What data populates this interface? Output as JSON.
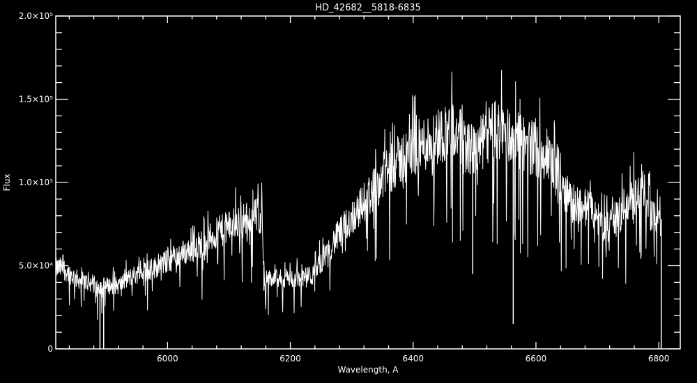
{
  "chart_data": {
    "type": "line",
    "title": "HD_42682__5818-6835",
    "xlabel": "Wavelength, A",
    "ylabel": "Flux",
    "xlim": [
      5818,
      6835
    ],
    "ylim": [
      0,
      200000
    ],
    "grid": false,
    "x_ticks": [
      {
        "value": 6000,
        "label": "6000"
      },
      {
        "value": 6200,
        "label": "6200"
      },
      {
        "value": 6400,
        "label": "6400"
      },
      {
        "value": 6600,
        "label": "6600"
      },
      {
        "value": 6800,
        "label": "6800"
      }
    ],
    "x_minor_step": 40,
    "y_ticks": [
      {
        "value": 0,
        "label": "0"
      },
      {
        "value": 50000,
        "label": "5.0×10⁴"
      },
      {
        "value": 100000,
        "label": "1.0×10⁵"
      },
      {
        "value": 150000,
        "label": "1.5×10⁵"
      },
      {
        "value": 200000,
        "label": "2.0×10⁵"
      }
    ],
    "y_minor_step": 10000,
    "color": "#ffffff",
    "background": "#000000",
    "continuum": {
      "x": [
        5829,
        5852,
        5886,
        5920,
        5943,
        5977,
        6011,
        6045,
        6079,
        6113,
        6147,
        6153,
        6158,
        6181,
        6215,
        6237,
        6260,
        6294,
        6328,
        6362,
        6396,
        6430,
        6464,
        6498,
        6532,
        6566,
        6600,
        6634,
        6656,
        6690,
        6713,
        6747,
        6770,
        6793,
        6803
      ],
      "y": [
        48500,
        42000,
        38000,
        38000,
        44000,
        48500,
        55000,
        61000,
        69000,
        76000,
        80000,
        80000,
        42000,
        42000,
        42000,
        44000,
        59000,
        76000,
        92000,
        109000,
        118000,
        126000,
        132000,
        118000,
        132000,
        126000,
        120000,
        109000,
        88000,
        84000,
        72000,
        84000,
        97000,
        80000,
        78000
      ]
    },
    "absorption_lines": {
      "x": [
        5890,
        5896,
        6157,
        6497,
        6563,
        6804
      ],
      "y": [
        0,
        0,
        35000,
        45000,
        15000,
        0
      ]
    }
  }
}
